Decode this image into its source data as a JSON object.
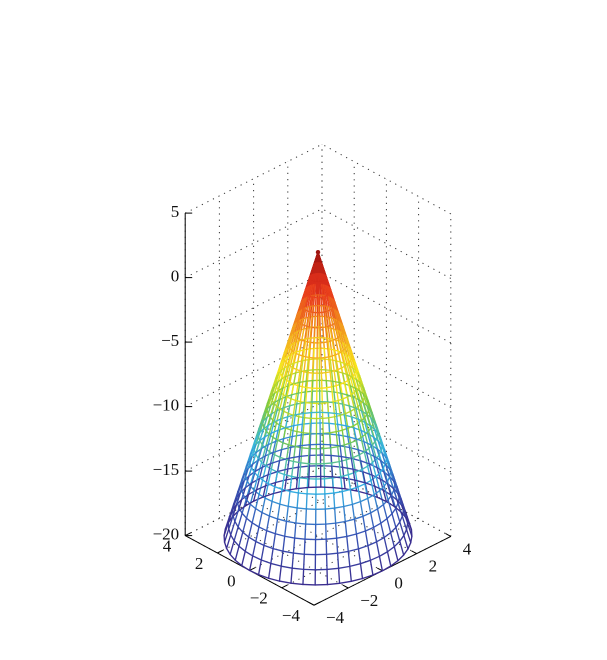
{
  "chart_data": {
    "type": "surface-mesh",
    "title": "",
    "xlabel": "",
    "ylabel": "",
    "zlabel": "",
    "grid": true,
    "colormap": "jet",
    "surface": "z = 2 - 5.5 * sqrt(x^2 + y^2)",
    "radius_max": 4,
    "apex_z": 2,
    "base_z": -20,
    "radial_steps": 22,
    "angular_steps": 48,
    "xlim": [
      -4,
      4
    ],
    "ylim": [
      -4,
      4
    ],
    "zlim": [
      -20,
      5
    ],
    "x_ticks": [
      -4,
      -2,
      0,
      2,
      4
    ],
    "y_ticks": [
      -4,
      -2,
      0,
      2,
      4
    ],
    "z_ticks": [
      -20,
      -15,
      -10,
      -5,
      0,
      5
    ],
    "x_tick_labels": [
      "−4",
      "−2",
      "0",
      "2",
      "4"
    ],
    "y_tick_labels": [
      "−4",
      "−2",
      "0",
      "2",
      "4"
    ],
    "z_tick_labels": [
      "−20",
      "−15",
      "−10",
      "−5",
      "0",
      "5"
    ],
    "jet_colors": [
      "#00008f",
      "#0000ff",
      "#00ffff",
      "#ffff00",
      "#ff0000",
      "#800000"
    ],
    "display_colors": [
      "#3a2d8f",
      "#3858b8",
      "#33b5e5",
      "#7ac943",
      "#f8e71c",
      "#f29a1f",
      "#e8341c",
      "#9e1410"
    ]
  }
}
